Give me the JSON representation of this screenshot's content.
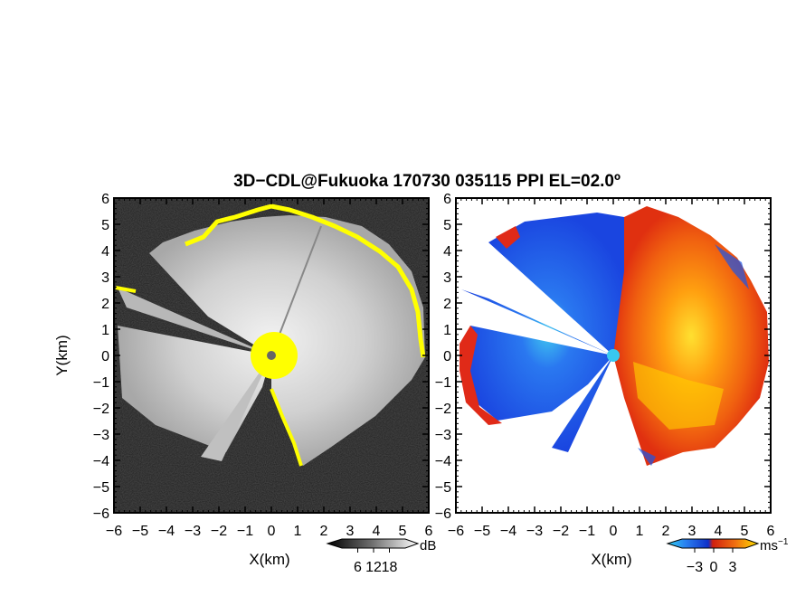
{
  "title": "3D−CDL@Fukuoka 170730 035115 PPI EL=02.0º",
  "chart_data": [
    {
      "type": "heatmap",
      "panel": "left",
      "quantity": "backscatter intensity",
      "xlabel": "X(km)",
      "ylabel": "Y(km)",
      "xlim": [
        -6,
        6
      ],
      "ylim": [
        -6,
        6
      ],
      "x_ticks": [
        "−6",
        "−5",
        "−4",
        "−3",
        "−2",
        "−1",
        "0",
        "1",
        "2",
        "3",
        "4",
        "5",
        "6"
      ],
      "y_ticks": [
        "6",
        "5",
        "4",
        "3",
        "2",
        "1",
        "0",
        "−1",
        "−2",
        "−3",
        "−4",
        "−5",
        "−6"
      ],
      "colorbar": {
        "unit": "dB",
        "ticks": [
          "6",
          "12",
          "18"
        ],
        "values": [
          6,
          12,
          18
        ],
        "range": [
          0,
          24
        ],
        "colormap": "grayscale",
        "ends": "triangular"
      },
      "colors": {
        "background_noise": "#1e1e1e",
        "echo": "#d8d8d8",
        "saturated": "#ffff00",
        "radar_site": "#666666"
      }
    },
    {
      "type": "heatmap",
      "panel": "right",
      "quantity": "radial velocity",
      "xlabel": "X(km)",
      "xlim": [
        -6,
        6
      ],
      "ylim": [
        -6,
        6
      ],
      "x_ticks": [
        "−6",
        "−5",
        "−4",
        "−3",
        "−2",
        "−1",
        "0",
        "1",
        "2",
        "3",
        "4",
        "5",
        "6"
      ],
      "y_ticks": [
        "6",
        "5",
        "4",
        "3",
        "2",
        "1",
        "0",
        "−1",
        "−2",
        "−3",
        "−4",
        "−5",
        "−6"
      ],
      "colorbar": {
        "unit": "ms",
        "unit_exp": "−1",
        "ticks": [
          "−3",
          "0",
          "3"
        ],
        "values": [
          -3,
          0,
          3
        ],
        "range": [
          -5,
          5
        ],
        "colormap": "cyan-blue-red-yellow",
        "ends": "triangular"
      },
      "colors": {
        "approaching": "#1a55e8",
        "receding": "#f05010",
        "strong_receding": "#ffd000",
        "near_zero": "#38c8f0",
        "fill_red": "#e02a18"
      }
    }
  ]
}
